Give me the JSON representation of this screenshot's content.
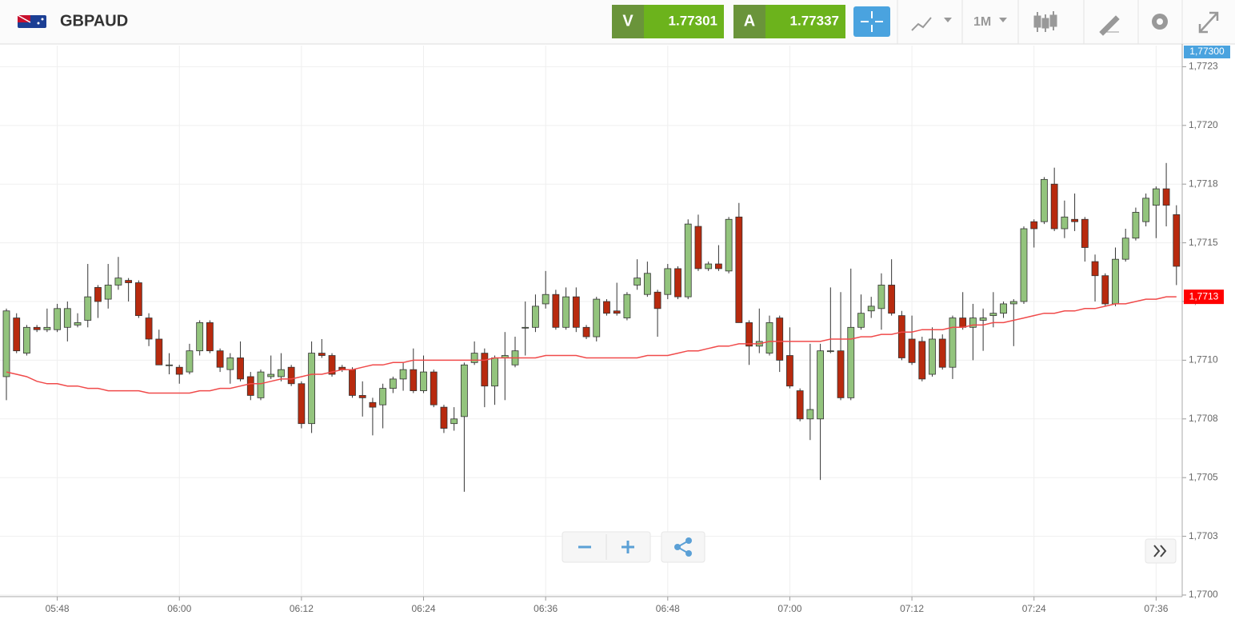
{
  "header": {
    "symbol": "GBPAUD",
    "bid_label": "V",
    "bid": "1.77301",
    "ask_label": "A",
    "ask": "1.77337",
    "timeframe": "1M"
  },
  "chart_data": {
    "type": "candlestick",
    "categories": [
      null,
      null,
      null,
      null,
      null,
      "05:48",
      null,
      null,
      null,
      null,
      null,
      null,
      null,
      null,
      null,
      null,
      null,
      "06:00",
      null,
      null,
      null,
      null,
      null,
      null,
      null,
      null,
      null,
      null,
      null,
      "06:12",
      null,
      null,
      null,
      null,
      null,
      null,
      null,
      null,
      null,
      null,
      null,
      "06:24",
      null,
      null,
      null,
      null,
      null,
      null,
      null,
      null,
      null,
      null,
      null,
      "06:36",
      null,
      null,
      null,
      null,
      null,
      null,
      null,
      null,
      null,
      null,
      null,
      "06:48",
      null,
      null,
      null,
      null,
      null,
      null,
      null,
      null,
      null,
      null,
      null,
      "07:00",
      null,
      null,
      null,
      null,
      null,
      null,
      null,
      null,
      null,
      null,
      null,
      "07:12",
      null,
      null,
      null,
      null,
      null,
      null,
      null,
      null,
      null,
      null,
      null,
      "07:24",
      null,
      null,
      null,
      null,
      null,
      null,
      null,
      null,
      null,
      null,
      null,
      "07:36",
      null,
      null
    ],
    "open": [
      1.77093,
      1.77118,
      1.77103,
      1.77114,
      1.77113,
      1.77113,
      1.77114,
      1.77115,
      1.77117,
      1.77131,
      1.77126,
      1.77132,
      1.77134,
      1.77133,
      1.77118,
      1.77109,
      1.77098,
      1.77097,
      1.77095,
      1.77104,
      1.77116,
      1.77104,
      1.77096,
      1.77101,
      1.77093,
      1.77084,
      1.77093,
      1.77093,
      1.77097,
      1.7709,
      1.77073,
      1.77103,
      1.77102,
      1.77097,
      1.77096,
      1.77085,
      1.77082,
      1.77081,
      1.77088,
      1.77092,
      1.77096,
      1.77087,
      1.77095,
      1.7708,
      1.77073,
      1.77076,
      1.77099,
      1.77103,
      1.77089,
      1.77101,
      1.77098,
      1.77114,
      1.77114,
      1.77124,
      1.77128,
      1.77114,
      1.77127,
      1.77114,
      1.7711,
      1.77125,
      1.77121,
      1.77118,
      1.77132,
      1.77128,
      1.77129,
      1.77128,
      1.77139,
      1.77127,
      1.77157,
      1.77139,
      1.77141,
      1.77138,
      1.77161,
      1.77116,
      1.77106,
      1.77103,
      1.77118,
      1.77102,
      1.77087,
      1.77075,
      1.77075,
      1.77104,
      1.77104,
      1.77084,
      1.77114,
      1.77121,
      1.77122,
      1.77132,
      1.77119,
      1.77109,
      1.77108,
      1.77094,
      1.77109,
      1.77097,
      1.77118,
      1.77114,
      1.77117,
      1.77119,
      1.7712,
      1.77124,
      1.77125,
      1.77159,
      1.77159,
      1.77175,
      1.77156,
      1.7716,
      1.7716,
      1.77142,
      1.77136,
      1.77124,
      1.77143,
      1.77152,
      1.77159,
      1.77166,
      1.77173,
      1.77162
    ],
    "high": [
      1.77122,
      1.7712,
      1.77115,
      1.77115,
      1.77122,
      1.77124,
      1.77125,
      1.7712,
      1.77141,
      1.77132,
      1.77141,
      1.77144,
      1.77135,
      1.77134,
      1.7712,
      1.77113,
      1.77103,
      1.77098,
      1.77107,
      1.77117,
      1.77117,
      1.77105,
      1.77103,
      1.77108,
      1.77095,
      1.77096,
      1.77102,
      1.77103,
      1.77098,
      1.77091,
      1.77108,
      1.77109,
      1.77103,
      1.77098,
      1.77097,
      1.77091,
      1.77084,
      1.7709,
      1.77093,
      1.77099,
      1.77105,
      1.77102,
      1.77096,
      1.77081,
      1.7708,
      1.77099,
      1.77108,
      1.77105,
      1.77102,
      1.77112,
      1.7711,
      1.77125,
      1.77128,
      1.77138,
      1.7713,
      1.77131,
      1.77131,
      1.77115,
      1.77127,
      1.77126,
      1.77133,
      1.77129,
      1.77143,
      1.77142,
      1.7713,
      1.77141,
      1.7714,
      1.7716,
      1.77162,
      1.77142,
      1.77149,
      1.77161,
      1.77167,
      1.77117,
      1.77122,
      1.77119,
      1.77119,
      1.77114,
      1.77088,
      1.77107,
      1.77107,
      1.77131,
      1.77129,
      1.77139,
      1.77128,
      1.77127,
      1.77137,
      1.77143,
      1.77121,
      1.77119,
      1.7711,
      1.77114,
      1.77111,
      1.77119,
      1.77129,
      1.77124,
      1.77122,
      1.77129,
      1.77125,
      1.77126,
      1.77157,
      1.7716,
      1.77178,
      1.77182,
      1.77168,
      1.77171,
      1.77161,
      1.77145,
      1.77137,
      1.77148,
      1.77156,
      1.77165,
      1.77171,
      1.77174,
      1.77184,
      1.77166
    ],
    "low": [
      1.77083,
      1.77103,
      1.77102,
      1.77112,
      1.77112,
      1.77112,
      1.77108,
      1.77114,
      1.77114,
      1.77118,
      1.77122,
      1.7713,
      1.77125,
      1.77118,
      1.77106,
      1.77098,
      1.77094,
      1.7709,
      1.77094,
      1.77102,
      1.77103,
      1.77095,
      1.7709,
      1.77091,
      1.77083,
      1.77083,
      1.77092,
      1.77091,
      1.77089,
      1.77071,
      1.77069,
      1.77101,
      1.77093,
      1.77095,
      1.77084,
      1.77076,
      1.77068,
      1.77071,
      1.77086,
      1.77087,
      1.77086,
      1.77086,
      1.7708,
      1.77069,
      1.7707,
      1.77044,
      1.77098,
      1.7708,
      1.77081,
      1.77083,
      1.77097,
      1.77102,
      1.77112,
      1.77122,
      1.77113,
      1.77113,
      1.77112,
      1.77109,
      1.77108,
      1.77119,
      1.77119,
      1.77117,
      1.7713,
      1.77127,
      1.7711,
      1.77126,
      1.77126,
      1.77126,
      1.77138,
      1.77138,
      1.77138,
      1.77137,
      1.77116,
      1.77098,
      1.77103,
      1.77102,
      1.77095,
      1.77088,
      1.77074,
      1.77066,
      1.77049,
      1.77103,
      1.77083,
      1.77083,
      1.77113,
      1.77118,
      1.77113,
      1.77119,
      1.771,
      1.77098,
      1.77091,
      1.77093,
      1.77096,
      1.77092,
      1.77113,
      1.771,
      1.77104,
      1.77114,
      1.77118,
      1.77106,
      1.77124,
      1.77148,
      1.77158,
      1.77155,
      1.77152,
      1.77155,
      1.77142,
      1.77125,
      1.77123,
      1.77123,
      1.77142,
      1.77151,
      1.77157,
      1.77152,
      1.77157,
      1.77132
    ],
    "close": [
      1.77121,
      1.77104,
      1.77114,
      1.77113,
      1.77114,
      1.77122,
      1.77122,
      1.77116,
      1.77127,
      1.77125,
      1.77132,
      1.77135,
      1.77133,
      1.77119,
      1.77109,
      1.77098,
      1.77098,
      1.77094,
      1.77104,
      1.77116,
      1.77104,
      1.77097,
      1.77101,
      1.77092,
      1.77085,
      1.77095,
      1.77094,
      1.77096,
      1.7709,
      1.77073,
      1.77103,
      1.77102,
      1.77094,
      1.77096,
      1.77085,
      1.77084,
      1.7708,
      1.77088,
      1.77092,
      1.77096,
      1.77087,
      1.77095,
      1.77081,
      1.77071,
      1.77075,
      1.77098,
      1.77103,
      1.77089,
      1.77101,
      1.77102,
      1.77104,
      1.77114,
      1.77123,
      1.77128,
      1.77114,
      1.77127,
      1.77114,
      1.7711,
      1.77126,
      1.7712,
      1.7712,
      1.77128,
      1.77135,
      1.77137,
      1.77122,
      1.77139,
      1.77127,
      1.77158,
      1.77139,
      1.77141,
      1.77139,
      1.7716,
      1.77116,
      1.77106,
      1.77108,
      1.77116,
      1.771,
      1.77089,
      1.77075,
      1.77079,
      1.77104,
      1.77104,
      1.77084,
      1.77114,
      1.7712,
      1.77123,
      1.77132,
      1.7712,
      1.77101,
      1.77099,
      1.77092,
      1.77109,
      1.77097,
      1.77118,
      1.77114,
      1.77118,
      1.77118,
      1.7712,
      1.77124,
      1.77125,
      1.77156,
      1.77156,
      1.77177,
      1.77156,
      1.77161,
      1.77159,
      1.77148,
      1.77136,
      1.77124,
      1.77143,
      1.77152,
      1.77163,
      1.77169,
      1.77173,
      1.77166,
      1.7714
    ],
    "color_up": "#93c47d",
    "color_down": "#b82a0e",
    "ma": {
      "color": "#f04a4a",
      "values": [
        1.77095,
        1.77094,
        1.77093,
        1.77091,
        1.7709,
        1.7709,
        1.77089,
        1.77089,
        1.77088,
        1.77088,
        1.77087,
        1.77087,
        1.77087,
        1.77087,
        1.77086,
        1.77086,
        1.77086,
        1.77086,
        1.77086,
        1.77087,
        1.77087,
        1.77088,
        1.77088,
        1.77089,
        1.7709,
        1.7709,
        1.77091,
        1.77092,
        1.77092,
        1.77093,
        1.77094,
        1.77094,
        1.77095,
        1.77096,
        1.77096,
        1.77097,
        1.77098,
        1.77098,
        1.77099,
        1.77099,
        1.771,
        1.771,
        1.771,
        1.771,
        1.771,
        1.771,
        1.771,
        1.771,
        1.77101,
        1.77101,
        1.77101,
        1.77101,
        1.77101,
        1.77102,
        1.77102,
        1.77102,
        1.77102,
        1.77101,
        1.77101,
        1.77101,
        1.77101,
        1.77101,
        1.77101,
        1.77102,
        1.77102,
        1.77102,
        1.77103,
        1.77104,
        1.77104,
        1.77105,
        1.77106,
        1.77106,
        1.77107,
        1.77107,
        1.77107,
        1.77108,
        1.77108,
        1.77108,
        1.77108,
        1.77108,
        1.77108,
        1.77109,
        1.77109,
        1.77109,
        1.7711,
        1.7711,
        1.77111,
        1.77111,
        1.77112,
        1.77112,
        1.77113,
        1.77113,
        1.77113,
        1.77114,
        1.77114,
        1.77115,
        1.77115,
        1.77116,
        1.77116,
        1.77117,
        1.77118,
        1.77119,
        1.7712,
        1.7712,
        1.77121,
        1.77121,
        1.77122,
        1.77122,
        1.77123,
        1.77124,
        1.77124,
        1.77125,
        1.77126,
        1.77126,
        1.77127,
        1.77127
      ]
    },
    "ylim": [
      1.77,
      1.77234
    ],
    "yticks": [
      {
        "value": 1.77,
        "label": "1,7700"
      },
      {
        "value": 1.77025,
        "label": "1,7703"
      },
      {
        "value": 1.7705,
        "label": "1,7705"
      },
      {
        "value": 1.77075,
        "label": "1,7708"
      },
      {
        "value": 1.771,
        "label": "1,7710"
      },
      {
        "value": 1.77125,
        "label": "1,7713"
      },
      {
        "value": 1.7715,
        "label": "1,7715"
      },
      {
        "value": 1.77175,
        "label": "1,7718"
      },
      {
        "value": 1.772,
        "label": "1,7720"
      },
      {
        "value": 1.77225,
        "label": "1,7723"
      }
    ],
    "grid": true,
    "last_price_label": "1,77300",
    "ma_label": "1,7713"
  }
}
